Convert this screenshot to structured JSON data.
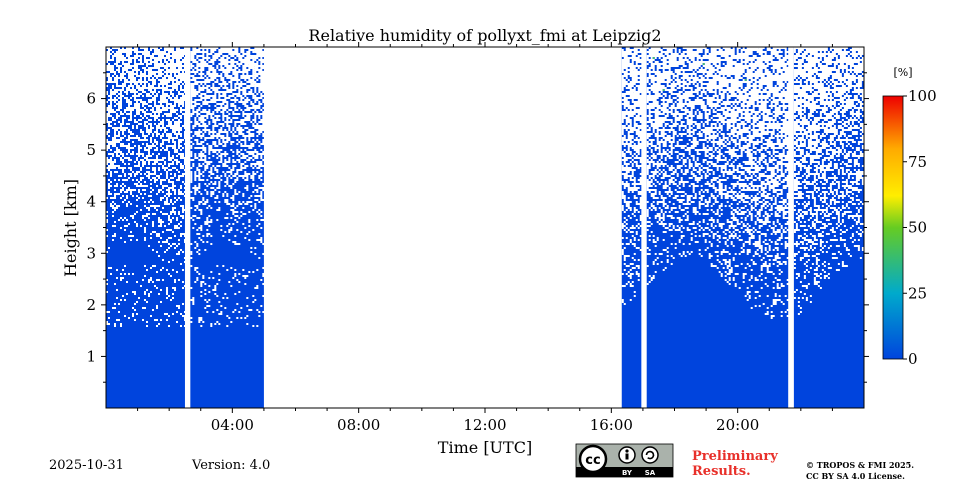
{
  "chart_data": {
    "type": "heatmap",
    "title": "Relative humidity of pollyxt_fmi at Leipzig2",
    "xlabel": "Time [UTC]",
    "ylabel": "Height [km]",
    "xlim": [
      0,
      24
    ],
    "ylim": [
      0,
      7
    ],
    "x_ticks": [
      {
        "value": 4,
        "label": "04:00"
      },
      {
        "value": 8,
        "label": "08:00"
      },
      {
        "value": 12,
        "label": "12:00"
      },
      {
        "value": 16,
        "label": "16:00"
      },
      {
        "value": 20,
        "label": "20:00"
      }
    ],
    "y_ticks": [
      {
        "value": 1,
        "label": "1"
      },
      {
        "value": 2,
        "label": "2"
      },
      {
        "value": 3,
        "label": "3"
      },
      {
        "value": 4,
        "label": "4"
      },
      {
        "value": 5,
        "label": "5"
      },
      {
        "value": 6,
        "label": "6"
      }
    ],
    "data_segments": [
      {
        "t_start": 0.0,
        "t_end": 2.5
      },
      {
        "t_start": 2.67,
        "t_end": 5.0
      },
      {
        "t_start": 16.33,
        "t_end": 16.95
      },
      {
        "t_start": 17.12,
        "t_end": 21.6
      },
      {
        "t_start": 21.78,
        "t_end": 24.0
      }
    ],
    "no_data_interval": [
      5.0,
      16.33
    ],
    "colorbar": {
      "unit": "[%]",
      "range": [
        0,
        100
      ],
      "ticks": [
        {
          "value": 0,
          "label": "0"
        },
        {
          "value": 25,
          "label": "25"
        },
        {
          "value": 50,
          "label": "50"
        },
        {
          "value": 75,
          "label": "75"
        },
        {
          "value": 100,
          "label": "100"
        }
      ],
      "colors": [
        "#0044dd",
        "#00aacc",
        "#66cc22",
        "#ffee00",
        "#ffaa00",
        "#ee0000"
      ]
    },
    "dominant_value_percent": 0
  },
  "footer": {
    "date": "2025-10-31",
    "version": "Version: 4.0",
    "preliminary_line1": "Preliminary",
    "preliminary_line2": "Results.",
    "copyright_line1": "© TROPOS & FMI 2025.",
    "copyright_line2": "CC BY SA 4.0 License."
  },
  "license_badge": {
    "by_label": "BY",
    "sa_label": "SA",
    "cc_label": "cc"
  },
  "colors": {
    "low_humidity_blue": "#0044dd",
    "prelim_red": "#e8302a"
  }
}
